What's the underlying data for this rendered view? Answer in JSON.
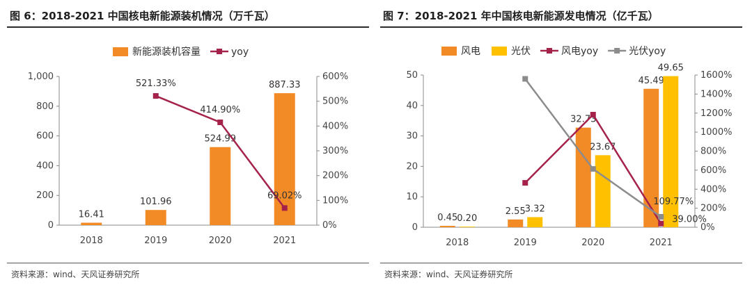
{
  "chart_data": [
    {
      "type": "bar",
      "title": "图 6：2018-2021 中国核电新能源装机情况（万千瓦）",
      "source": "资料来源：wind、天风证券研究所",
      "categories": [
        "2018",
        "2019",
        "2020",
        "2021"
      ],
      "series": [
        {
          "name": "新能源装机容量",
          "type": "bar",
          "axis": "left",
          "color": "#f28a26",
          "values": [
            16.41,
            101.96,
            524.99,
            887.33
          ],
          "labels": [
            "16.41",
            "101.96",
            "524.99",
            "887.33"
          ]
        },
        {
          "name": "yoy",
          "type": "line",
          "axis": "right",
          "color": "#a5224a",
          "values": [
            null,
            521.33,
            414.9,
            69.02
          ],
          "labels": [
            "",
            "521.33%",
            "414.90%",
            "69.02%"
          ]
        }
      ],
      "ylim": [
        0,
        1000
      ],
      "yticks": [
        "0",
        "200",
        "400",
        "600",
        "800",
        "1,000"
      ],
      "y2lim": [
        0,
        600
      ],
      "y2ticks": [
        "0%",
        "100%",
        "200%",
        "300%",
        "400%",
        "500%",
        "600%"
      ],
      "legend": "top"
    },
    {
      "type": "bar",
      "title": "图 7：2018-2021 年中国核电新能源发电情况（亿千瓦）",
      "source": "资料来源：wind、天风证券研究所",
      "categories": [
        "2018",
        "2019",
        "2020",
        "2021"
      ],
      "series": [
        {
          "name": "风电",
          "type": "bar",
          "axis": "left",
          "color": "#f28a26",
          "values": [
            0.45,
            2.55,
            32.73,
            45.49
          ],
          "labels": [
            "0.45",
            "2.55",
            "32.73",
            "45.49"
          ]
        },
        {
          "name": "光伏",
          "type": "bar",
          "axis": "left",
          "color": "#ffc000",
          "values": [
            0.2,
            3.32,
            23.67,
            49.65
          ],
          "labels": [
            "0.20",
            "3.32",
            "23.67",
            "49.65"
          ]
        },
        {
          "name": "风电yoy",
          "type": "line",
          "axis": "right",
          "color": "#a5224a",
          "values": [
            null,
            466.67,
            1183.53,
            39.0
          ],
          "labels": [
            "",
            "",
            "",
            "39.00%"
          ]
        },
        {
          "name": "光伏yoy",
          "type": "line",
          "axis": "right",
          "color": "#8c8c8c",
          "values": [
            null,
            1560.0,
            612.95,
            109.77
          ],
          "labels": [
            "",
            "",
            "",
            "109.77%"
          ]
        }
      ],
      "ylim": [
        0,
        50
      ],
      "yticks": [
        "0",
        "10",
        "20",
        "30",
        "40",
        "50"
      ],
      "y2lim": [
        0,
        1600
      ],
      "y2ticks": [
        "0%",
        "200%",
        "400%",
        "600%",
        "800%",
        "1000%",
        "1200%",
        "1400%",
        "1600%"
      ],
      "legend": "top"
    }
  ]
}
